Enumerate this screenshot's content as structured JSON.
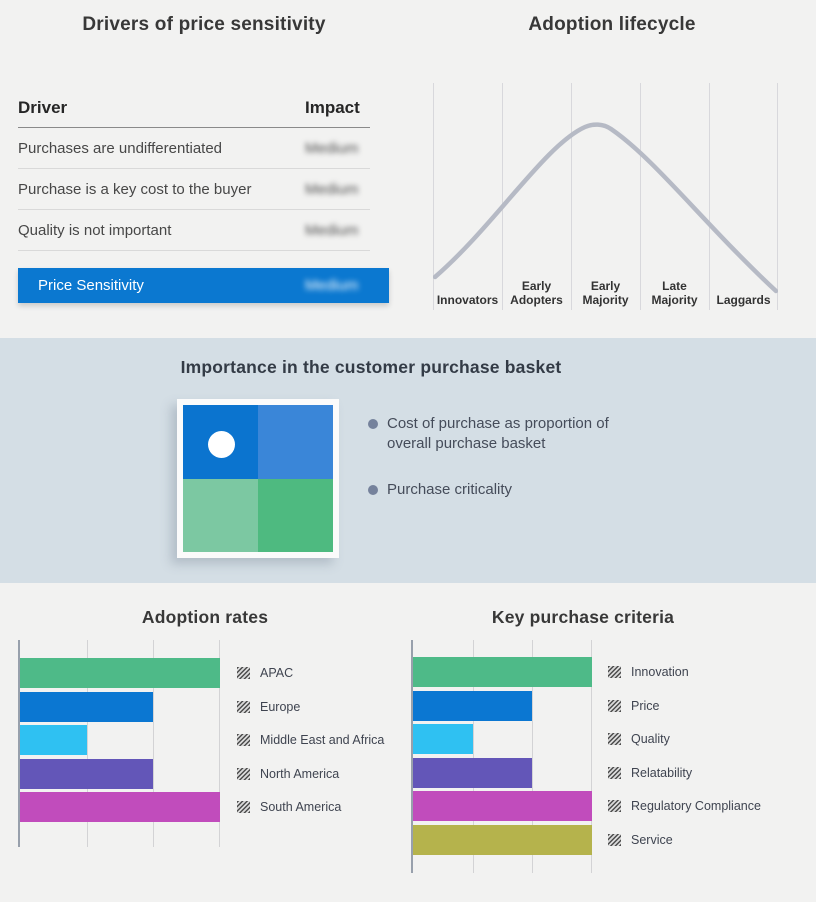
{
  "colors": {
    "page_bg": "#f2f2f1",
    "band_bg": "#d4dee5",
    "accent_blue": "#0b78d0",
    "curve": "#b6bac5"
  },
  "price_drivers": {
    "title": "Drivers of price sensitivity",
    "col_driver": "Driver",
    "col_impact": "Impact",
    "impact_values_obscured": true,
    "rows": [
      {
        "driver": "Purchases are undifferentiated",
        "impact": "Medium"
      },
      {
        "driver": "Purchase is a key cost to the buyer",
        "impact": "Medium"
      },
      {
        "driver": "Quality is not important",
        "impact": "Medium"
      }
    ],
    "summary_label": "Price Sensitivity",
    "summary_impact": "Medium",
    "summary_bg": "#0b78d0"
  },
  "purchase_basket": {
    "title": "Importance in the customer purchase basket",
    "bullets": [
      "Cost of purchase as proportion of overall purchase basket",
      "Purchase criticality"
    ],
    "quadrant_colors": {
      "top_left": "#0b74cf",
      "top_right": "#3a86d8",
      "bottom_left": "#7cc8a2",
      "bottom_right": "#4eba80"
    },
    "marker": "white dot in top-left quadrant"
  },
  "chart_data": [
    {
      "type": "line",
      "title": "Adoption lifecycle",
      "shape": "bell curve, peak over Early Majority",
      "categories": [
        "Innovators",
        "Early Adopters",
        "Early Majority",
        "Late Majority",
        "Laggards"
      ],
      "line_color": "#b6bac5",
      "grid": "vertical segment dividers",
      "legend_position": "none"
    },
    {
      "type": "bar",
      "title": "Adoption rates",
      "orientation": "horizontal",
      "categories": [
        "APAC",
        "Europe",
        "Middle East and Africa",
        "North America",
        "South America"
      ],
      "values": [
        3,
        2,
        1,
        2,
        3
      ],
      "xlim": [
        0,
        3
      ],
      "bar_colors": [
        "#4eba88",
        "#0b77d2",
        "#2fc1f2",
        "#6356b8",
        "#c14cbc"
      ],
      "grid": true,
      "legend_position": "right",
      "legend_swatch_style": "gray diagonal hatch"
    },
    {
      "type": "bar",
      "title": "Key purchase criteria",
      "orientation": "horizontal",
      "categories": [
        "Innovation",
        "Price",
        "Quality",
        "Relatability",
        "Regulatory Compliance",
        "Service"
      ],
      "values": [
        3,
        2,
        1,
        2,
        3,
        3
      ],
      "xlim": [
        0,
        3
      ],
      "bar_colors": [
        "#4eba88",
        "#0b77d2",
        "#2fc1f2",
        "#6356b8",
        "#c14cbc",
        "#b5b34c"
      ],
      "grid": true,
      "legend_position": "right",
      "legend_swatch_style": "gray diagonal hatch"
    }
  ]
}
